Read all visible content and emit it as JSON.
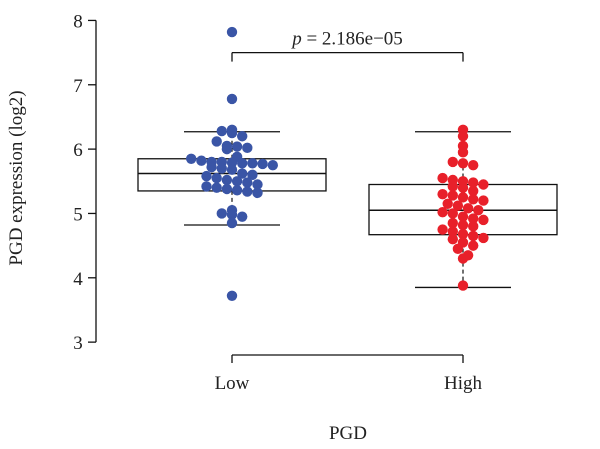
{
  "chart_data": {
    "type": "box",
    "categories": [
      "Low",
      "High"
    ],
    "xlabel": "PGD",
    "ylabel": "PGD expression (log2)",
    "ylim": [
      2.8,
      8.1
    ],
    "yticks": [
      3,
      4,
      5,
      6,
      7,
      8
    ],
    "grid": false,
    "annotation": {
      "p_symbol": "p",
      "text": "= 2.186e−05",
      "between": [
        "Low",
        "High"
      ]
    },
    "series": [
      {
        "category": "Low",
        "color": "#3A55A6",
        "box": {
          "whisker_low": 4.82,
          "q1": 5.35,
          "median": 5.62,
          "q3": 5.85,
          "whisker_high": 6.27
        },
        "points": [
          7.82,
          6.78,
          6.3,
          6.28,
          6.25,
          6.2,
          6.12,
          6.05,
          6.04,
          6.02,
          6.0,
          5.88,
          5.85,
          5.82,
          5.8,
          5.8,
          5.79,
          5.78,
          5.78,
          5.77,
          5.75,
          5.72,
          5.7,
          5.68,
          5.62,
          5.6,
          5.58,
          5.55,
          5.52,
          5.5,
          5.48,
          5.45,
          5.42,
          5.4,
          5.38,
          5.36,
          5.34,
          5.32,
          5.05,
          5.0,
          4.98,
          4.95,
          4.85,
          3.72
        ]
      },
      {
        "category": "High",
        "color": "#E8202A",
        "box": {
          "whisker_low": 3.85,
          "q1": 4.67,
          "median": 5.05,
          "q3": 5.45,
          "whisker_high": 6.27
        },
        "points": [
          6.3,
          6.2,
          6.05,
          5.95,
          5.8,
          5.78,
          5.75,
          5.55,
          5.52,
          5.5,
          5.48,
          5.45,
          5.42,
          5.4,
          5.35,
          5.3,
          5.28,
          5.25,
          5.22,
          5.2,
          5.15,
          5.12,
          5.08,
          5.05,
          5.02,
          5.0,
          4.95,
          4.92,
          4.9,
          4.85,
          4.82,
          4.8,
          4.75,
          4.72,
          4.68,
          4.65,
          4.62,
          4.6,
          4.55,
          4.5,
          4.45,
          4.35,
          4.3,
          3.88
        ]
      }
    ]
  }
}
